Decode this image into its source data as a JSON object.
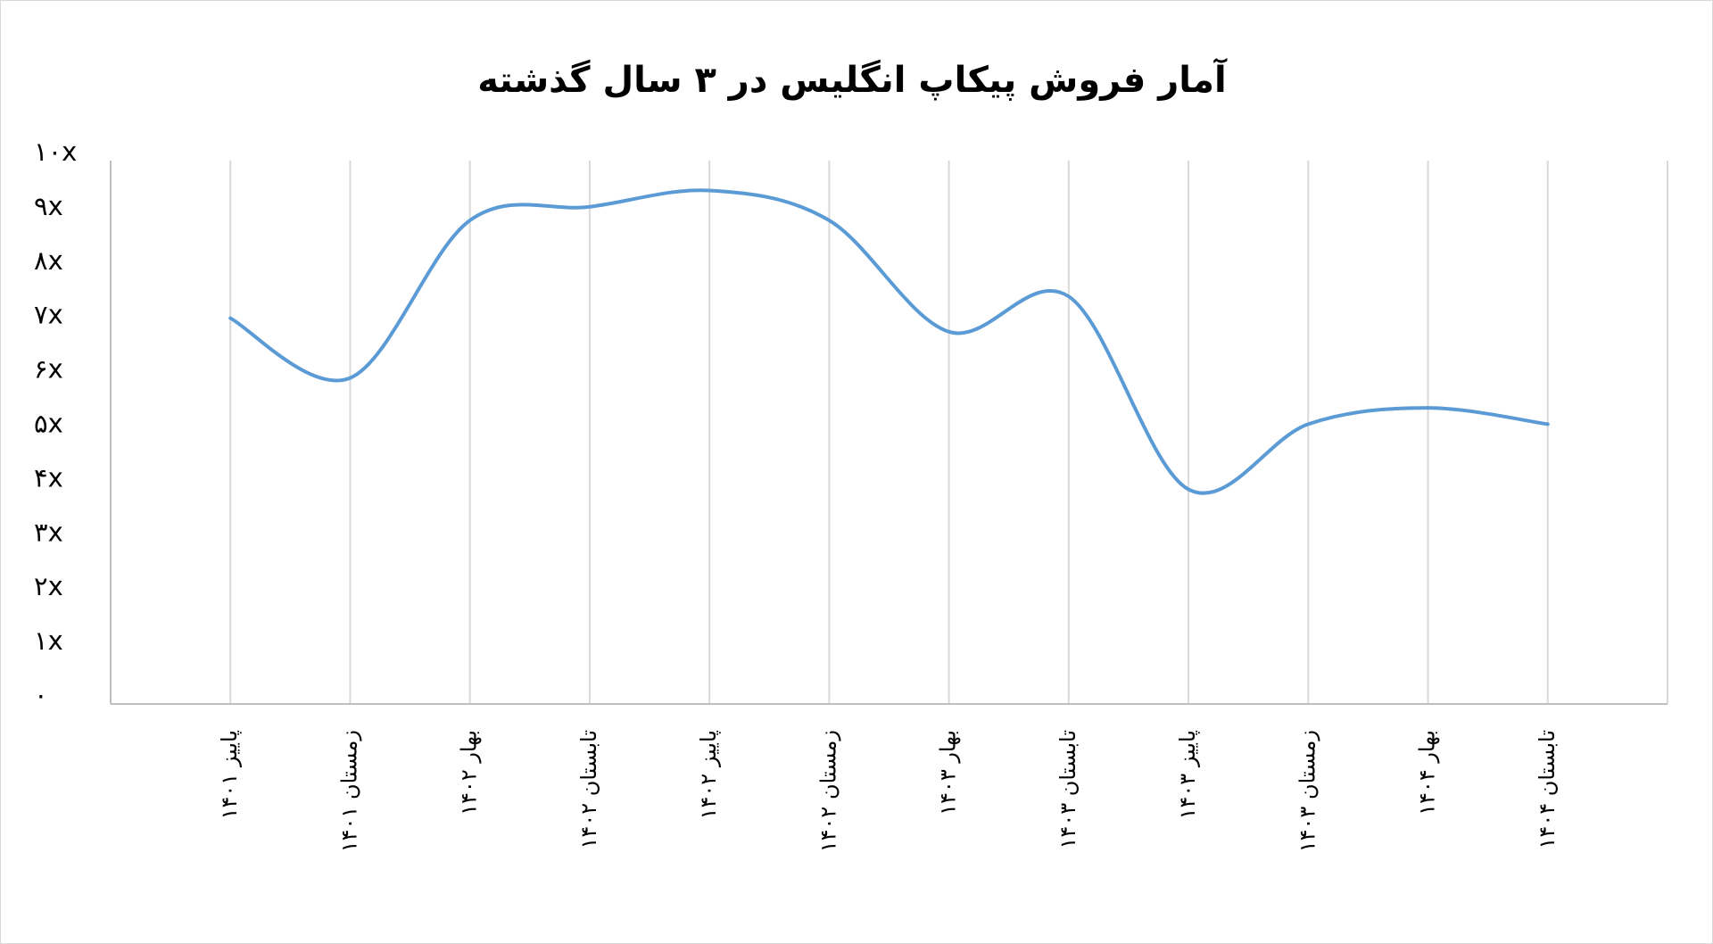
{
  "chart_data": {
    "type": "line",
    "title": "آمار فروش پیکاپ انگلیس در ۳ سال گذشته",
    "categories": [
      "پاییز ۱۴۰۱",
      "زمستان ۱۴۰۱",
      "بهار ۱۴۰۲",
      "تابستان ۱۴۰۲",
      "پاییز ۱۴۰۲",
      "زمستان ۱۴۰۲",
      "بهار ۱۴۰۳",
      "تابستان ۱۴۰۳",
      "پاییز ۱۴۰۳",
      "زمستان ۱۴۰۳",
      "بهار ۱۴۰۴",
      "تابستان ۱۴۰۴"
    ],
    "values": [
      7.1,
      6.0,
      8.9,
      9.15,
      9.45,
      8.9,
      6.85,
      7.5,
      3.95,
      5.15,
      5.45,
      5.15
    ],
    "color": "#5b9bd5",
    "smooth": true,
    "grid": true,
    "ylim": [
      0,
      10
    ],
    "yticks": [
      {
        "value": 0,
        "label": "۰"
      },
      {
        "value": 1,
        "label": "۱x"
      },
      {
        "value": 2,
        "label": "۲x"
      },
      {
        "value": 3,
        "label": "۳x"
      },
      {
        "value": 4,
        "label": "۴x"
      },
      {
        "value": 5,
        "label": "۵x"
      },
      {
        "value": 6,
        "label": "۶x"
      },
      {
        "value": 7,
        "label": "۷x"
      },
      {
        "value": 8,
        "label": "۸x"
      },
      {
        "value": 9,
        "label": "۹x"
      },
      {
        "value": 10,
        "label": "۱۰x"
      }
    ]
  }
}
